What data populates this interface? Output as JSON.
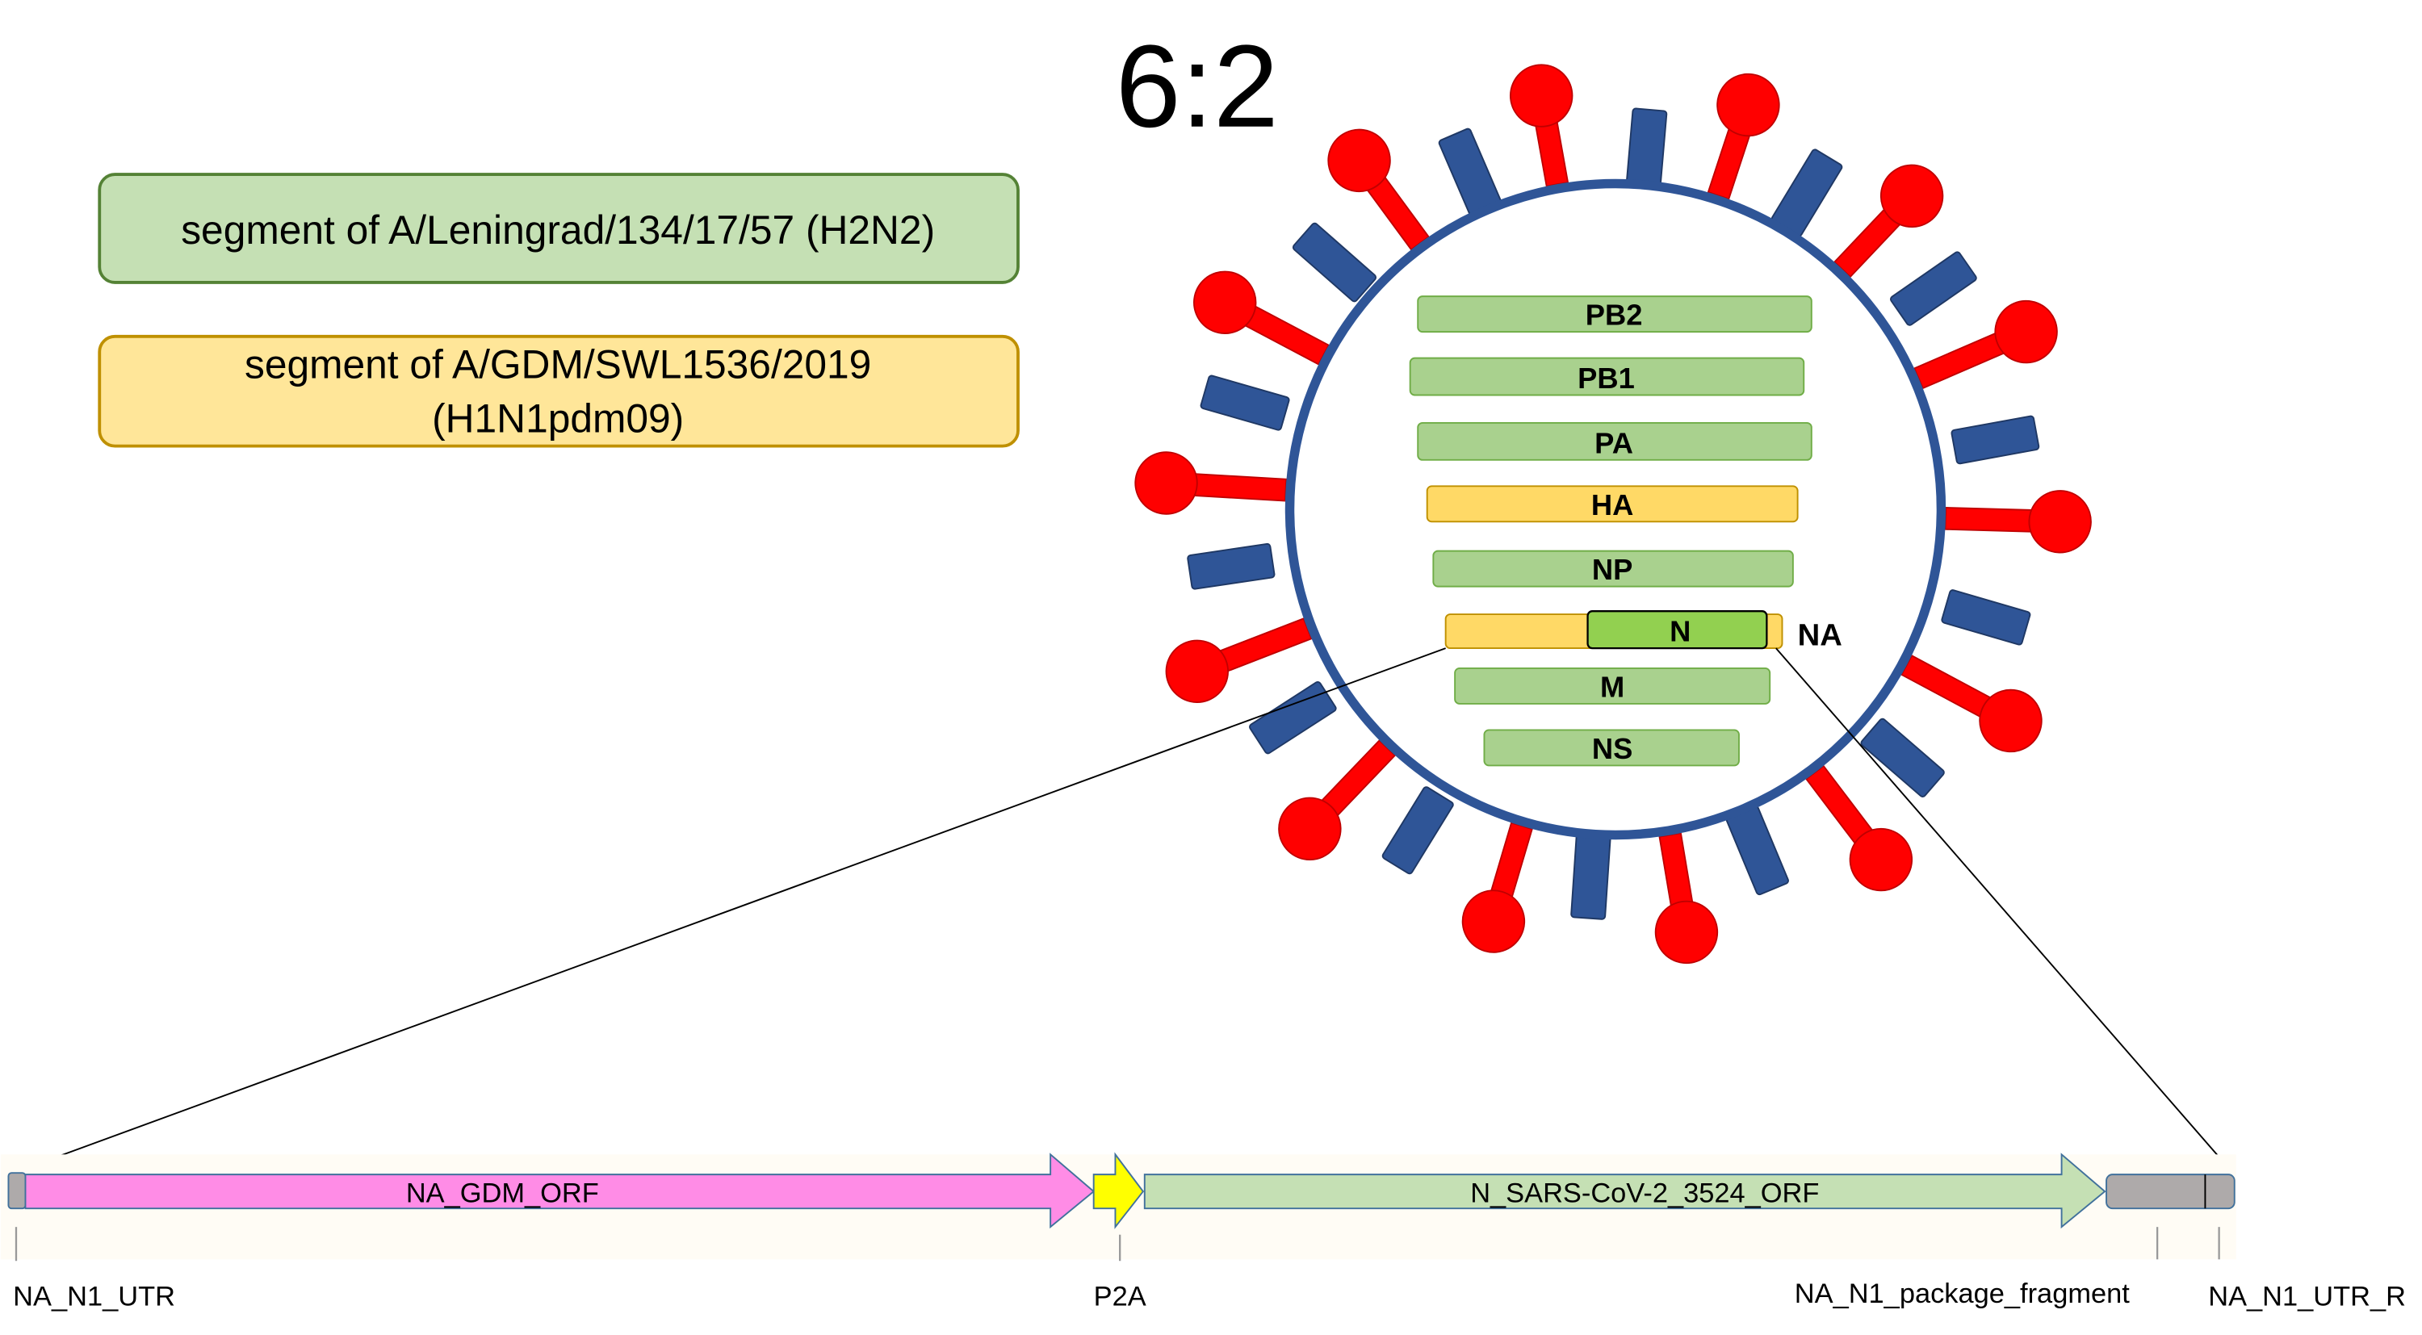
{
  "title": "6:2",
  "legend": {
    "donor": {
      "text": "segment of A/Leningrad/134/17/57 (H2N2)",
      "color": "#c5e0b4"
    },
    "recipient": {
      "line1": "segment of A/GDM/SWL1536/2019",
      "line2": "(H1N1pdm09)",
      "color": "#ffe699"
    }
  },
  "virion": {
    "segments": [
      {
        "label": "PB2",
        "origin": "donor"
      },
      {
        "label": "PB1",
        "origin": "donor"
      },
      {
        "label": "PA",
        "origin": "donor"
      },
      {
        "label": "HA",
        "origin": "recipient"
      },
      {
        "label": "NP",
        "origin": "donor"
      },
      {
        "label": "N",
        "origin": "recipient"
      },
      {
        "label": "M",
        "origin": "donor"
      },
      {
        "label": "NS",
        "origin": "donor"
      }
    ],
    "na_label": "NA",
    "membrane_color": "#2f5597",
    "ha_spike_color": "#ff0000",
    "na_spike_color": "#2f5597"
  },
  "construct": {
    "features": {
      "orf1": {
        "label": "NA_GDM_ORF",
        "color": "#ff8ce6"
      },
      "p2a": {
        "color": "#ffff00"
      },
      "orf2": {
        "label": "N_SARS-CoV-2_3524_ORF",
        "color": "#c5e0b4"
      },
      "utr_color": "#aeaaaa"
    },
    "annotations": [
      "NA_N1_UTR",
      "P2A",
      "NA_N1_package_fragment",
      "NA_N1_UTR_R"
    ]
  }
}
